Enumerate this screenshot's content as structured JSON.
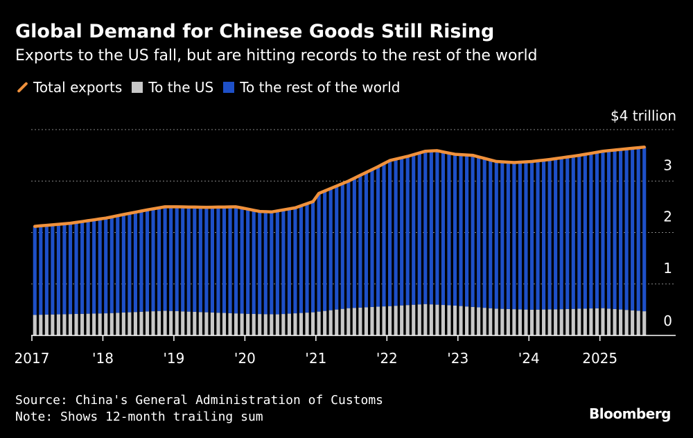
{
  "title": "Global Demand for Chinese Goods Still Rising",
  "subtitle": "Exports to the US fall, but are hitting records to the rest of the world",
  "legend": {
    "total": "Total exports",
    "us": "To the US",
    "row": "To the rest of the world"
  },
  "footer": {
    "source": "Source: China's General Administration of Customs",
    "note": "Note: Shows 12-month trailing sum"
  },
  "brand": "Bloomberg",
  "colors": {
    "total": "#f0913c",
    "us": "#c8c8c8",
    "row": "#1e50c8",
    "background": "#000000",
    "grid": "#8a8a8a"
  },
  "chart_data": {
    "type": "bar",
    "stacked": true,
    "unit_label": "$4 trillion",
    "y_ticks": [
      0,
      1,
      2,
      3,
      4
    ],
    "y_tick_labels": [
      "0",
      "1",
      "2",
      "3",
      "$4 trillion"
    ],
    "ylim": [
      0,
      4
    ],
    "x_tick_labels": [
      "2017",
      "'18",
      "'19",
      "'20",
      "'21",
      "'22",
      "'23",
      "'24",
      "2025"
    ],
    "x_tick_years": [
      2017,
      2018,
      2019,
      2020,
      2021,
      2022,
      2023,
      2024,
      2025
    ],
    "period_start": "2017-01",
    "period_end": "2025-08",
    "frequency": "monthly",
    "total_keyframes": [
      [
        "2017-01",
        2.12
      ],
      [
        "2017-07",
        2.18
      ],
      [
        "2018-01",
        2.28
      ],
      [
        "2018-04",
        2.35
      ],
      [
        "2018-08",
        2.44
      ],
      [
        "2018-11",
        2.5
      ],
      [
        "2019-01",
        2.5
      ],
      [
        "2019-06",
        2.49
      ],
      [
        "2019-11",
        2.5
      ],
      [
        "2020-03",
        2.41
      ],
      [
        "2020-05",
        2.4
      ],
      [
        "2020-09",
        2.48
      ],
      [
        "2020-12",
        2.6
      ],
      [
        "2021-01",
        2.76
      ],
      [
        "2021-06",
        3.0
      ],
      [
        "2021-11",
        3.28
      ],
      [
        "2022-01",
        3.4
      ],
      [
        "2022-04",
        3.48
      ],
      [
        "2022-07",
        3.58
      ],
      [
        "2022-09",
        3.59
      ],
      [
        "2022-12",
        3.52
      ],
      [
        "2023-03",
        3.5
      ],
      [
        "2023-07",
        3.38
      ],
      [
        "2023-10",
        3.36
      ],
      [
        "2024-01",
        3.38
      ],
      [
        "2024-04",
        3.42
      ],
      [
        "2024-09",
        3.5
      ],
      [
        "2025-01",
        3.58
      ],
      [
        "2025-08",
        3.66
      ]
    ],
    "us_keyframes": [
      [
        "2017-01",
        0.4
      ],
      [
        "2018-01",
        0.43
      ],
      [
        "2018-11",
        0.48
      ],
      [
        "2019-06",
        0.45
      ],
      [
        "2020-01",
        0.42
      ],
      [
        "2020-06",
        0.41
      ],
      [
        "2020-12",
        0.45
      ],
      [
        "2021-06",
        0.53
      ],
      [
        "2022-01",
        0.57
      ],
      [
        "2022-07",
        0.61
      ],
      [
        "2022-12",
        0.58
      ],
      [
        "2023-07",
        0.52
      ],
      [
        "2024-01",
        0.5
      ],
      [
        "2024-06",
        0.51
      ],
      [
        "2025-01",
        0.53
      ],
      [
        "2025-08",
        0.47
      ]
    ]
  }
}
